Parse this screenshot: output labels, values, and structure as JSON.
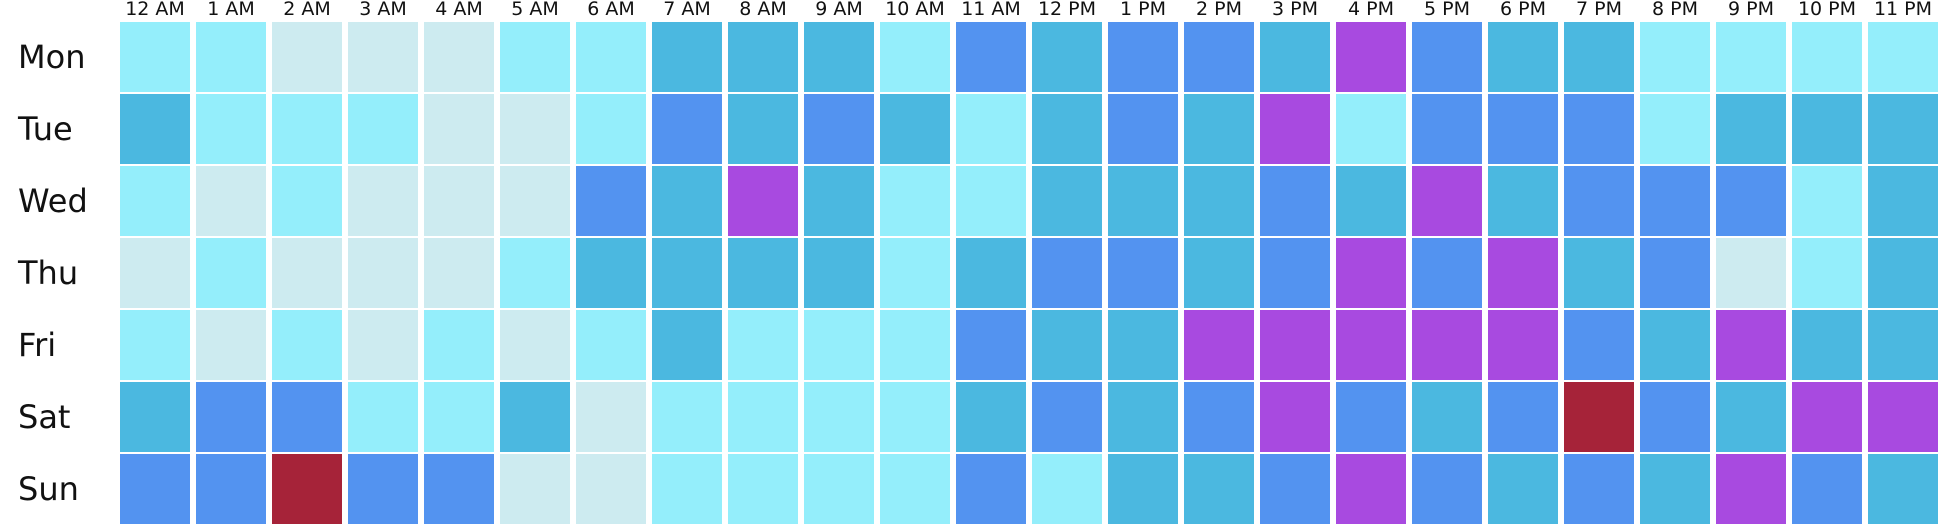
{
  "chart_data": {
    "type": "heatmap",
    "title": "",
    "xlabel": "",
    "ylabel": "",
    "x_labels": [
      "12 AM",
      "1 AM",
      "2 AM",
      "3 AM",
      "4 AM",
      "5 AM",
      "6 AM",
      "7 AM",
      "8 AM",
      "9 AM",
      "10 AM",
      "11 AM",
      "12 PM",
      "1 PM",
      "2 PM",
      "3 PM",
      "4 PM",
      "5 PM",
      "6 PM",
      "7 PM",
      "8 PM",
      "9 PM",
      "10 PM",
      "11 PM"
    ],
    "y_labels": [
      "Mon",
      "Tue",
      "Wed",
      "Thu",
      "Fri",
      "Sat",
      "Sun"
    ],
    "color_levels": [
      "#cdebf0",
      "#94eefb",
      "#4bb8e0",
      "#5393f0",
      "#a84ae0",
      "#a62339"
    ],
    "values": [
      [
        1,
        1,
        0,
        0,
        0,
        1,
        1,
        2,
        2,
        2,
        1,
        3,
        2,
        3,
        3,
        2,
        4,
        3,
        2,
        2,
        1,
        1,
        1,
        1
      ],
      [
        2,
        1,
        1,
        1,
        0,
        0,
        1,
        3,
        2,
        3,
        2,
        1,
        2,
        3,
        2,
        4,
        1,
        3,
        3,
        3,
        1,
        2,
        2,
        2
      ],
      [
        1,
        0,
        1,
        0,
        0,
        0,
        3,
        2,
        4,
        2,
        1,
        1,
        2,
        2,
        2,
        3,
        2,
        4,
        2,
        3,
        3,
        3,
        1,
        2
      ],
      [
        0,
        1,
        0,
        0,
        0,
        1,
        2,
        2,
        2,
        2,
        1,
        2,
        3,
        3,
        2,
        3,
        4,
        3,
        4,
        2,
        3,
        0,
        1,
        2
      ],
      [
        1,
        0,
        1,
        0,
        1,
        0,
        1,
        2,
        1,
        1,
        1,
        3,
        2,
        2,
        4,
        4,
        4,
        4,
        4,
        3,
        2,
        4,
        2,
        2
      ],
      [
        2,
        3,
        3,
        1,
        1,
        2,
        0,
        1,
        1,
        1,
        1,
        2,
        3,
        2,
        3,
        4,
        3,
        2,
        3,
        5,
        3,
        2,
        4,
        4
      ],
      [
        3,
        3,
        5,
        3,
        3,
        0,
        0,
        1,
        1,
        1,
        1,
        3,
        1,
        2,
        2,
        3,
        4,
        3,
        2,
        3,
        2,
        4,
        3,
        2
      ]
    ]
  }
}
